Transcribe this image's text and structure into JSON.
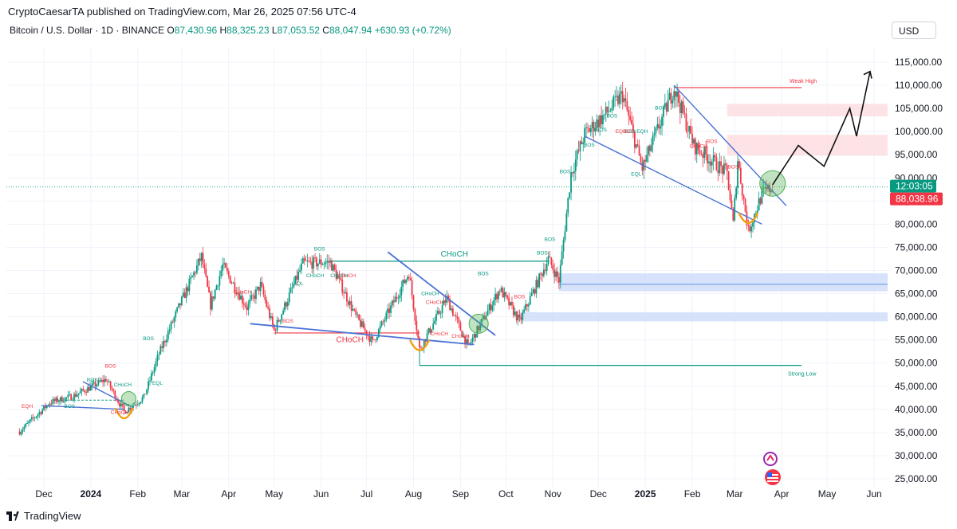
{
  "header": {
    "publisher_line": "CryptoCaesarTA published on TradingView.com, Mar 26, 2025 07:56 UTC-4",
    "symbol": "Bitcoin / U.S. Dollar · 1D · BINANCE",
    "open_label": "O",
    "open": "87,430.96",
    "high_label": "H",
    "high": "88,325.23",
    "low_label": "L",
    "low": "87,053.52",
    "close_label": "C",
    "close": "88,047.94",
    "change": "+630.93 (+0.72%)",
    "currency_button": "USD"
  },
  "footer": {
    "brand": "TradingView"
  },
  "colors": {
    "up": "#089981",
    "down": "#f23645",
    "trend": "#4a72d6",
    "zone_blue": "#c9d9f8",
    "zone_red": "#fcd9dc",
    "accent": "#089981"
  },
  "chart_data": {
    "type": "candlestick",
    "title": "Bitcoin / U.S. Dollar · 1D · BINANCE",
    "ylim": [
      22000,
      120000
    ],
    "x_ticks": [
      "Dec",
      "2024",
      "Feb",
      "Mar",
      "Apr",
      "May",
      "Jun",
      "Jul",
      "Aug",
      "Sep",
      "Oct",
      "Nov",
      "Dec",
      "2025",
      "Feb",
      "Mar",
      "Apr",
      "May",
      "Jun"
    ],
    "x_tick_dates": [
      "2023-12-01",
      "2024-01-01",
      "2024-02-01",
      "2024-03-01",
      "2024-04-01",
      "2024-05-01",
      "2024-06-01",
      "2024-07-01",
      "2024-08-01",
      "2024-09-01",
      "2024-10-01",
      "2024-11-01",
      "2024-12-01",
      "2025-01-01",
      "2025-02-01",
      "2025-03-01",
      "2025-04-01",
      "2025-05-01",
      "2025-06-01"
    ],
    "y_ticks": [
      25000,
      30000,
      35000,
      40000,
      45000,
      50000,
      55000,
      60000,
      65000,
      70000,
      75000,
      80000,
      85000,
      90000,
      95000,
      100000,
      105000,
      110000,
      115000
    ],
    "y_tick_labels": [
      "25,000.00",
      "30,000.00",
      "35,000.00",
      "40,000.00",
      "45,000.00",
      "50,000.00",
      "55,000.00",
      "60,000.00",
      "65,000.00",
      "70,000.00",
      "75,000.00",
      "80,000.00",
      "85,000.00",
      "90,000.00",
      "95,000.00",
      "100,000.00",
      "105,000.00",
      "110,000.00",
      "115,000.00"
    ],
    "price_path": [
      [
        "2023-11-15",
        35200
      ],
      [
        "2023-12-05",
        41500
      ],
      [
        "2023-12-20",
        42800
      ],
      [
        "2024-01-11",
        46500
      ],
      [
        "2024-01-23",
        39500
      ],
      [
        "2024-02-05",
        42600
      ],
      [
        "2024-02-15",
        52000
      ],
      [
        "2024-02-28",
        62000
      ],
      [
        "2024-03-14",
        73000
      ],
      [
        "2024-03-20",
        62500
      ],
      [
        "2024-03-28",
        71000
      ],
      [
        "2024-04-13",
        62000
      ],
      [
        "2024-04-22",
        66800
      ],
      [
        "2024-05-01",
        57000
      ],
      [
        "2024-05-20",
        71500
      ],
      [
        "2024-06-07",
        71800
      ],
      [
        "2024-06-24",
        60000
      ],
      [
        "2024-07-05",
        54500
      ],
      [
        "2024-07-29",
        69500
      ],
      [
        "2024-08-05",
        53000
      ],
      [
        "2024-08-23",
        64000
      ],
      [
        "2024-09-06",
        53500
      ],
      [
        "2024-09-27",
        66000
      ],
      [
        "2024-10-10",
        59000
      ],
      [
        "2024-10-29",
        72500
      ],
      [
        "2024-11-05",
        67800
      ],
      [
        "2024-11-13",
        91000
      ],
      [
        "2024-11-22",
        99500
      ],
      [
        "2024-12-05",
        103500
      ],
      [
        "2024-12-17",
        108000
      ],
      [
        "2024-12-30",
        92000
      ],
      [
        "2025-01-20",
        109500
      ],
      [
        "2025-02-02",
        97000
      ],
      [
        "2025-02-24",
        91000
      ],
      [
        "2025-02-28",
        80000
      ],
      [
        "2025-03-03",
        94000
      ],
      [
        "2025-03-10",
        78500
      ],
      [
        "2025-03-19",
        86500
      ],
      [
        "2025-03-26",
        88047.94
      ]
    ],
    "last_price_label": "88,038.96",
    "countdown_label": "12:03:05",
    "annotations": {
      "teal_labels": [
        "BOS",
        "CHoCH",
        "EQL",
        "EQL",
        "CHoCH",
        "CHoCH",
        "CHoCH",
        "BOS",
        "BOS",
        "BOS",
        "BOS",
        "BOS",
        "BOS",
        "BOS",
        "BOS",
        "BOS",
        "EQL",
        "BOS",
        "BOS",
        "BOS",
        "EQH"
      ],
      "red_labels": [
        "EQH",
        "BOS",
        "CHoCH",
        "CHoCH",
        "BOS",
        "CHoCH",
        "CHoCH",
        "CHoCH",
        "CHoCH",
        "BOS",
        "EQH",
        "BOS",
        "CHoCH",
        "BOS",
        "BOS"
      ],
      "big_labels": [
        "CHoCH",
        "CHoCH"
      ],
      "weak_high": {
        "text": "Weak High",
        "price": 109500
      },
      "strong_low": {
        "text": "Strong Low",
        "price": 49500
      }
    },
    "zones": [
      {
        "kind": "supply",
        "from": 103300,
        "to": 106000
      },
      {
        "kind": "supply",
        "from": 94800,
        "to": 99300
      },
      {
        "kind": "demand",
        "from": 65500,
        "to": 69400
      },
      {
        "kind": "demand",
        "from": 59000,
        "to": 61000
      }
    ],
    "projection": [
      [
        88500
      ],
      [
        97000
      ],
      [
        92500
      ],
      [
        105000
      ],
      [
        99000
      ],
      [
        113000
      ]
    ]
  }
}
